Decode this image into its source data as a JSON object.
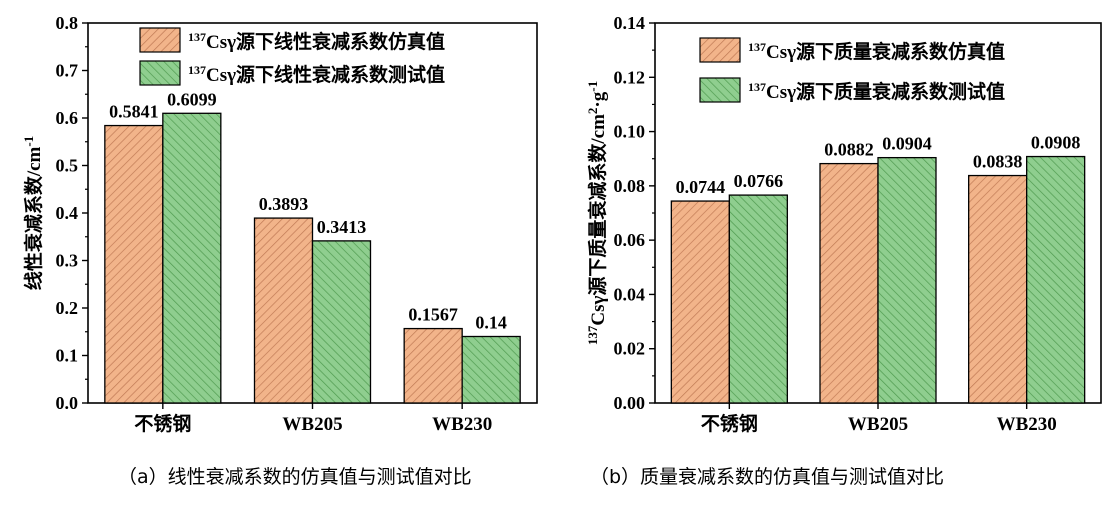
{
  "colors": {
    "sim": "#f2b48a",
    "sim_hatch": "#c07a55",
    "test": "#8fce8f",
    "test_hatch": "#4f9a4f"
  },
  "captions": {
    "a": "（a）线性衰减系数的仿真值与测试值对比",
    "b": "（b）质量衰减系数的仿真值与测试值对比"
  },
  "chart_data": [
    {
      "type": "bar",
      "categories": [
        "不锈钢",
        "WB205",
        "WB230"
      ],
      "series": [
        {
          "name": "137Csγ源下线性衰减系数仿真值",
          "values": [
            0.5841,
            0.3893,
            0.1567
          ],
          "labels": [
            "0.5841",
            "0.3893",
            "0.1567"
          ]
        },
        {
          "name": "137Csγ源下线性衰减系数测试值",
          "values": [
            0.6099,
            0.3413,
            0.14
          ],
          "labels": [
            "0.6099",
            "0.3413",
            "0.14"
          ]
        }
      ],
      "ylabel": "线性衰减系数/cm-1",
      "ylim": [
        0,
        0.8
      ],
      "yticks": [
        "0.0",
        "0.1",
        "0.2",
        "0.3",
        "0.4",
        "0.5",
        "0.6",
        "0.7",
        "0.8"
      ],
      "legend": "top-right",
      "grid": false
    },
    {
      "type": "bar",
      "categories": [
        "不锈钢",
        "WB205",
        "WB230"
      ],
      "series": [
        {
          "name": "137Csγ源下质量衰减系数仿真值",
          "values": [
            0.0744,
            0.0882,
            0.0838
          ],
          "labels": [
            "0.0744",
            "0.0882",
            "0.0838"
          ]
        },
        {
          "name": "137Csγ源下质量衰减系数测试值",
          "values": [
            0.0766,
            0.0904,
            0.0908
          ],
          "labels": [
            "0.0766",
            "0.0904",
            "0.0908"
          ]
        }
      ],
      "ylabel": "137Csγ源下质量衰减系数/cm2·g-1",
      "ylim": [
        0,
        0.14
      ],
      "yticks": [
        "0.00",
        "0.02",
        "0.04",
        "0.06",
        "0.08",
        "0.10",
        "0.12",
        "0.14"
      ],
      "legend": "top-right",
      "grid": false
    }
  ]
}
